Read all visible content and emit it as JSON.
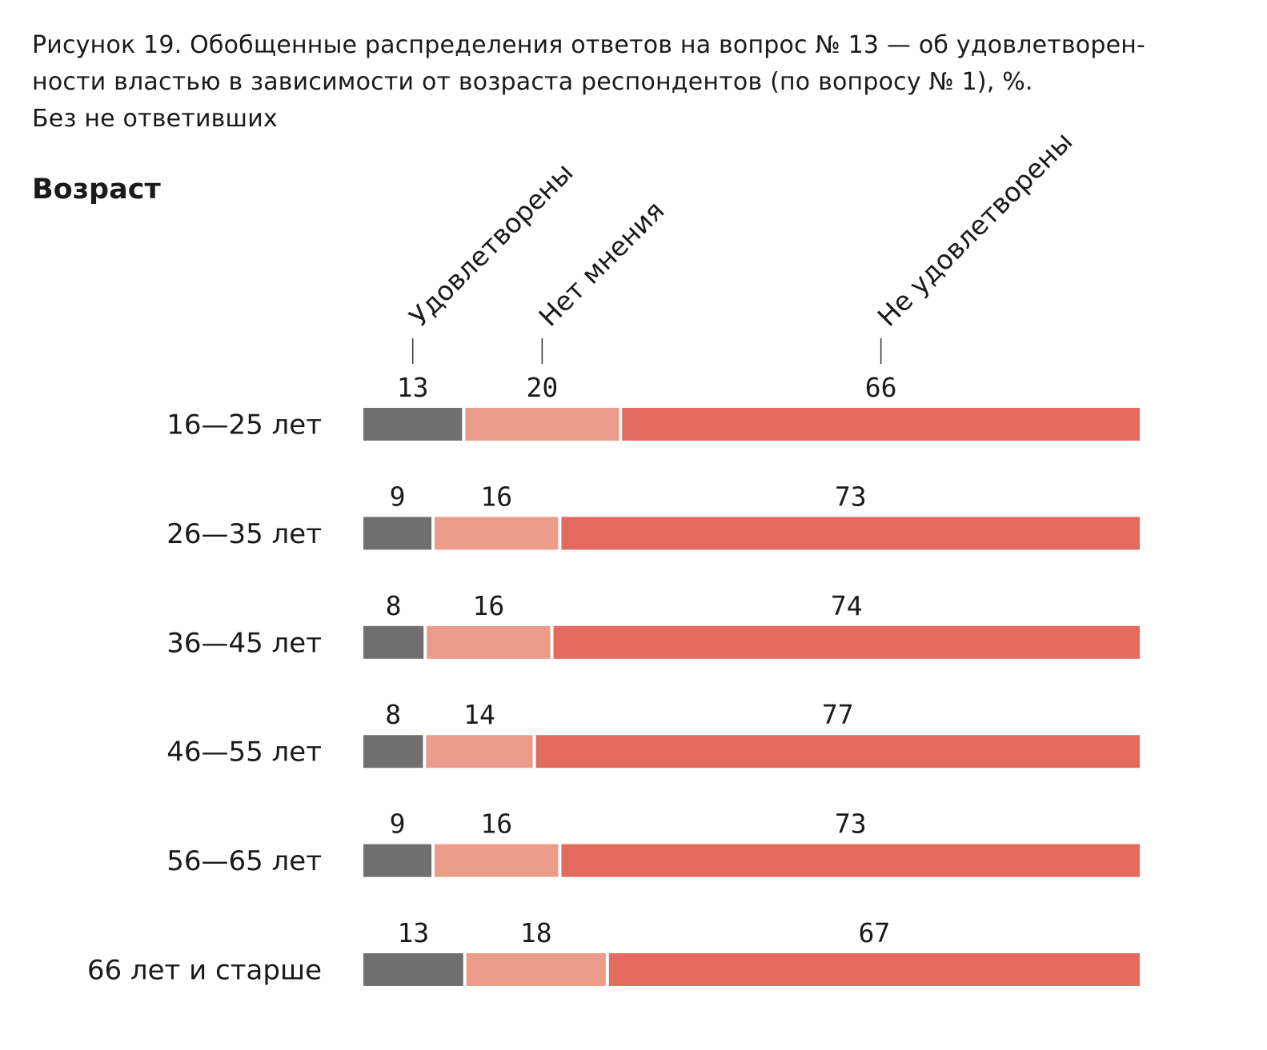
{
  "caption": {
    "line1": "Рисунок 19. Обобщенные распределения ответов на вопрос № 13 — об удовлетворен-",
    "line2": "ности властью в зависимости от возраста респондентов (по вопросу № 1), %.",
    "line3": "Без не ответивших"
  },
  "chart_data": {
    "type": "bar",
    "orientation": "horizontal",
    "stacked": true,
    "axis_title": "Возраст",
    "categories": [
      "16—25 лет",
      "26—35 лет",
      "36—45 лет",
      "46—55 лет",
      "56—65 лет",
      "66 лет и старше"
    ],
    "series": [
      {
        "name": "Удовлетворены",
        "color": "#707070",
        "values": [
          13,
          9,
          8,
          8,
          9,
          13
        ]
      },
      {
        "name": "Нет мнения",
        "color": "#eb9b89",
        "values": [
          20,
          16,
          16,
          14,
          16,
          18
        ]
      },
      {
        "name": "Не удовлетворены",
        "color": "#e36a5e",
        "values": [
          66,
          73,
          74,
          77,
          73,
          67
        ]
      }
    ],
    "legend_placement": "top, rotated labels above first row",
    "grid": false
  }
}
